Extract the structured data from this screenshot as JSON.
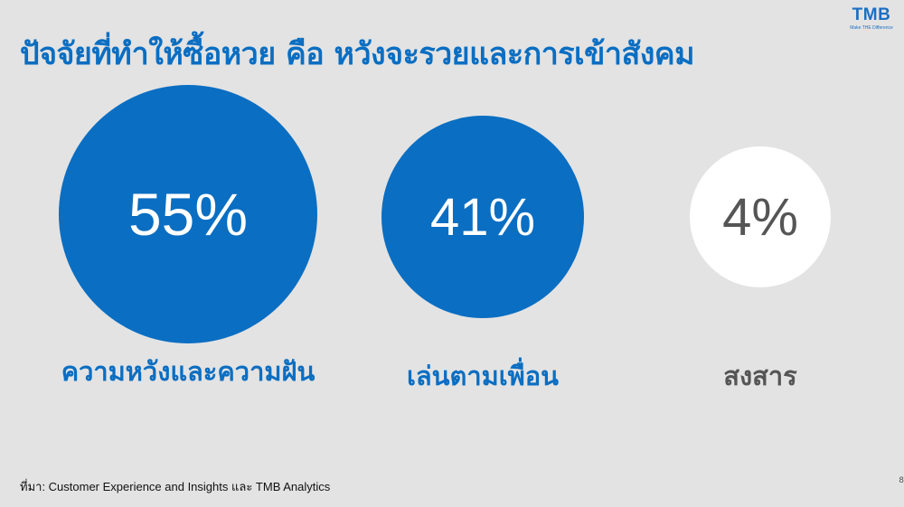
{
  "title": "ปัจจัยที่ทำให้ซื้อหวย คือ หวังจะรวยและการเข้าสังคม",
  "logo": {
    "mark": "TMB",
    "tagline": "Make THE Difference"
  },
  "chart_data": {
    "type": "bubble",
    "categories": [
      "ความหวังและความฝัน",
      "เล่นตามเพื่อน",
      "สงสาร"
    ],
    "values": [
      55,
      41,
      4
    ],
    "value_labels": [
      "55%",
      "41%",
      "4%"
    ],
    "colors": [
      "#0a6ec2",
      "#0a6ec2",
      "#ffffff"
    ],
    "value_text_colors": [
      "#ffffff",
      "#ffffff",
      "#555555"
    ],
    "label_colors": [
      "#0a6ec2",
      "#0a6ec2",
      "#555555"
    ]
  },
  "source": "ที่มา: Customer Experience and Insights และ TMB Analytics",
  "page_number": "8"
}
